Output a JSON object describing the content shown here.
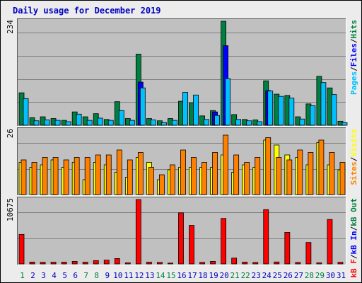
{
  "chart_data": {
    "type": "bar",
    "title": "Daily usage for December 2019",
    "categories": [
      "1",
      "2",
      "3",
      "4",
      "5",
      "6",
      "7",
      "8",
      "9",
      "10",
      "11",
      "12",
      "13",
      "14",
      "15",
      "16",
      "17",
      "18",
      "19",
      "20",
      "21",
      "22",
      "23",
      "24",
      "25",
      "26",
      "27",
      "28",
      "29",
      "30",
      "31"
    ],
    "weekend_days": [
      "1",
      "7",
      "8",
      "14",
      "15",
      "21",
      "22",
      "28",
      "29"
    ],
    "panels": [
      {
        "id": "top",
        "max_label": "234",
        "ymax": 234,
        "series": [
          {
            "name": "Hits",
            "color": "#008040",
            "values": [
              73,
              17,
              19,
              15,
              11,
              30,
              19,
              26,
              13,
              53,
              15,
              160,
              15,
              10,
              15,
              54,
              50,
              21,
              33,
              234,
              24,
              13,
              12,
              100,
              70,
              67,
              19,
              48,
              110,
              84,
              9
            ]
          },
          {
            "name": "Files",
            "color": "#0000ff",
            "values": [
              0,
              0,
              0,
              0,
              0,
              0,
              0,
              0,
              0,
              0,
              0,
              97,
              0,
              0,
              0,
              0,
              0,
              0,
              30,
              179,
              0,
              0,
              0,
              78,
              0,
              0,
              0,
              0,
              0,
              0,
              0
            ]
          },
          {
            "name": "Pages",
            "color": "#00c0ff",
            "values": [
              60,
              10,
              12,
              11,
              8,
              25,
              11,
              16,
              11,
              33,
              11,
              84,
              12,
              6,
              11,
              74,
              68,
              13,
              22,
              105,
              13,
              10,
              8,
              77,
              65,
              61,
              14,
              44,
              96,
              69,
              6
            ]
          }
        ]
      },
      {
        "id": "middle",
        "max_label": "26",
        "ymax": 26,
        "series": [
          {
            "name": "Visits",
            "color": "#ffff00",
            "values": [
              13,
              11,
              12,
              14,
              11,
              13,
              6,
              13,
              12,
              9,
              7,
              15,
              13,
              6,
              10,
              11,
              11,
              11,
              11,
              16,
              9,
              12,
              11,
              22,
              20,
              16,
              15,
              12,
              21,
              12,
              10
            ]
          },
          {
            "name": "Sites",
            "color": "#ff8000",
            "values": [
              14,
              13,
              15,
              15,
              14,
              15,
              15,
              16,
              16,
              18,
              14,
              17,
              11,
              8,
              12,
              18,
              15,
              13,
              17,
              24,
              16,
              13,
              15,
              23,
              15,
              14,
              18,
              17,
              22,
              17,
              13
            ]
          }
        ]
      },
      {
        "id": "bottom",
        "max_label": "10675",
        "ymax": 10675,
        "series": [
          {
            "name": "kB F",
            "color": "#ff0000",
            "values": [
              4886,
              307,
              267,
              282,
              291,
              417,
              289,
              551,
              628,
              891,
              173,
              10675,
              290,
              253,
              136,
              8468,
              6385,
              254,
              419,
              7539,
              961,
              295,
              237,
              9002,
              322,
              5228,
              240,
              3558,
              169,
              7373,
              270
            ]
          }
        ]
      }
    ],
    "right_legends": [
      {
        "panel": "top",
        "items": [
          {
            "text": "Pages",
            "color": "#00c0ff"
          },
          {
            "text": "/",
            "color": "#000000"
          },
          {
            "text": "Files",
            "color": "#0000ff"
          },
          {
            "text": "/",
            "color": "#000000"
          },
          {
            "text": "Hits",
            "color": "#008040"
          }
        ]
      },
      {
        "panel": "middle",
        "items": [
          {
            "text": "Sites",
            "color": "#ff8000"
          },
          {
            "text": "/",
            "color": "#000000"
          },
          {
            "text": "Visits",
            "color": "#ffff00"
          }
        ]
      },
      {
        "panel": "bottom",
        "items": [
          {
            "text": "kB F",
            "color": "#ff0000"
          },
          {
            "text": "/",
            "color": "#000000"
          },
          {
            "text": "kB In",
            "color": "#0000ff"
          },
          {
            "text": "/",
            "color": "#000000"
          },
          {
            "text": "kB Out",
            "color": "#008040"
          }
        ]
      }
    ],
    "colors": {
      "title": "#0000c0",
      "plot_bg": "#c0c0c0",
      "grid": "#808080",
      "weekday_label": "#0000c0",
      "weekend_label": "#008040"
    }
  }
}
